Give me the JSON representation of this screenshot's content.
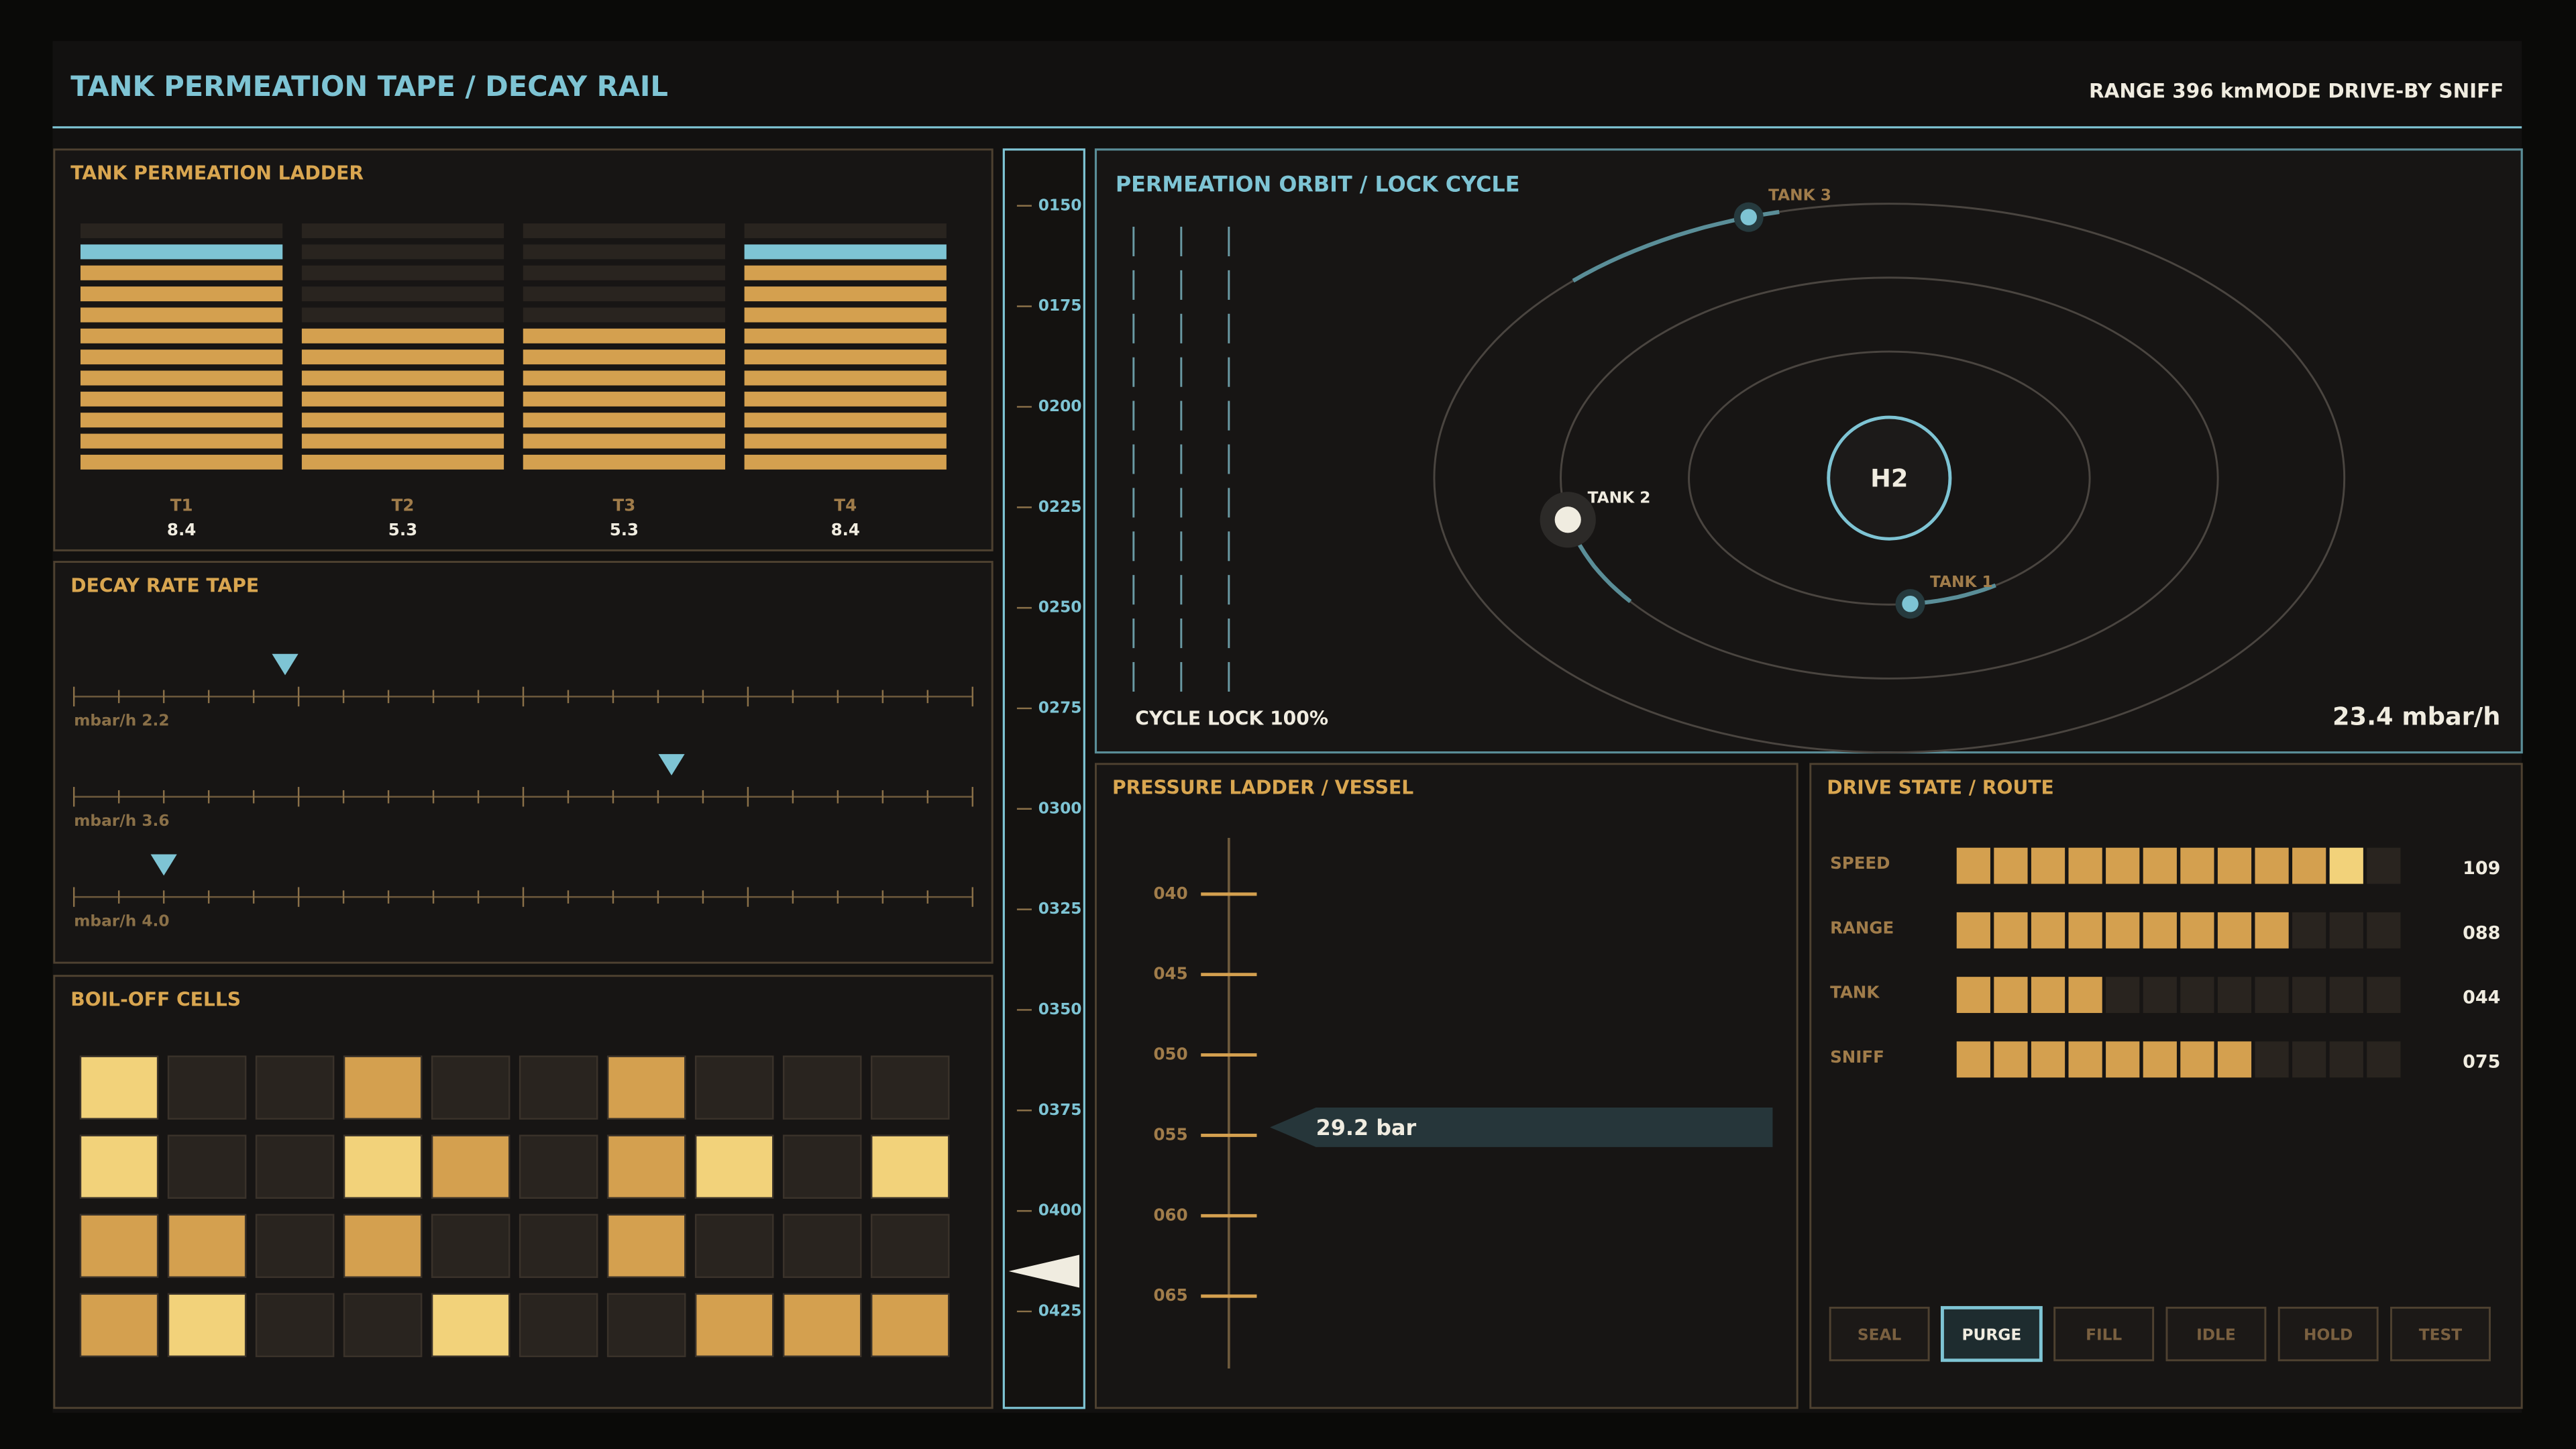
{
  "header": {
    "title": "TANK PERMEATION TAPE / DECAY RAIL",
    "status": [
      "RANGE 396 km",
      "MODE DRIVE-BY SNIFF"
    ]
  },
  "ladder": {
    "title": "TANK PERMEATION LADDER",
    "segments": 12,
    "ylim": [
      0,
      9.2
    ],
    "warn": 8,
    "tanks": [
      {
        "name": "T1",
        "value": 8.4
      },
      {
        "name": "T2",
        "value": 5.3
      },
      {
        "name": "T3",
        "value": 5.3
      },
      {
        "name": "T4",
        "value": 8.4
      }
    ]
  },
  "decay": {
    "title": "DECAY RATE TAPE",
    "xlim": [
      0,
      100
    ],
    "xticks": [
      0,
      5,
      10,
      15,
      20,
      25,
      30,
      35,
      40,
      45,
      50,
      55,
      60,
      65,
      70,
      75,
      80,
      85,
      90,
      95,
      100
    ],
    "tapes": [
      {
        "label": "mbar/h 2.2",
        "marker": 23.5
      },
      {
        "label": "mbar/h 3.6",
        "marker": 66.5
      },
      {
        "label": "mbar/h 4.0",
        "marker": 10
      }
    ]
  },
  "boiloff": {
    "title": "BOIL-OFF CELLS",
    "palette": [
      "#29241f",
      "#d4a04f",
      "#f2d27a"
    ],
    "cells": [
      [
        2,
        0,
        0,
        1,
        0,
        0,
        1,
        0,
        0,
        0
      ],
      [
        2,
        0,
        0,
        2,
        1,
        0,
        1,
        2,
        0,
        2
      ],
      [
        1,
        1,
        0,
        1,
        0,
        0,
        1,
        0,
        0,
        0
      ],
      [
        1,
        2,
        0,
        0,
        2,
        0,
        0,
        1,
        1,
        1
      ]
    ]
  },
  "rail": {
    "ylim": [
      136,
      449
    ],
    "pointer": 415,
    "yticks": [
      {
        "value": 150,
        "label": "0150"
      },
      {
        "value": 175,
        "label": "0175"
      },
      {
        "value": 200,
        "label": "0200"
      },
      {
        "value": 225,
        "label": "0225"
      },
      {
        "value": 250,
        "label": "0250"
      },
      {
        "value": 275,
        "label": "0275"
      },
      {
        "value": 300,
        "label": "0300"
      },
      {
        "value": 325,
        "label": "0325"
      },
      {
        "value": 350,
        "label": "0350"
      },
      {
        "value": 375,
        "label": "0375"
      },
      {
        "value": 400,
        "label": "0400"
      },
      {
        "value": 425,
        "label": "0425"
      }
    ]
  },
  "orbit": {
    "title": "PERMEATION ORBIT / LOCK CYCLE",
    "center": "H2",
    "lock": "CYCLE LOCK 100%",
    "rate": "23.4 mbar/h",
    "focus": 1,
    "tanks": [
      {
        "name": "TANK 1",
        "phase_deg": 84
      },
      {
        "name": "TANK 2",
        "phase_deg": 168
      },
      {
        "name": "TANK 3",
        "phase_deg": 252
      }
    ]
  },
  "pressure": {
    "title": "PRESSURE LADDER / VESSEL",
    "ylim": [
      36.5,
      69.5
    ],
    "marker": 54.5,
    "readout": "29.2 bar",
    "yticks": [
      {
        "value": 40,
        "label": "040"
      },
      {
        "value": 45,
        "label": "045"
      },
      {
        "value": 50,
        "label": "050"
      },
      {
        "value": 55,
        "label": "055"
      },
      {
        "value": 60,
        "label": "060"
      },
      {
        "value": 65,
        "label": "065"
      }
    ]
  },
  "drive": {
    "title": "DRIVE STATE / ROUTE",
    "xlim": [
      0,
      120
    ],
    "segments": 12,
    "warn": 100,
    "rows": [
      {
        "name": "SPEED",
        "value": 109,
        "value_label": "109"
      },
      {
        "name": "RANGE",
        "value": 88,
        "value_label": "088"
      },
      {
        "name": "TANK",
        "value": 44,
        "value_label": "044"
      },
      {
        "name": "SNIFF",
        "value": 75,
        "value_label": "075"
      }
    ],
    "buttons": [
      "SEAL",
      "PURGE",
      "FILL",
      "IDLE",
      "HOLD",
      "TEST"
    ],
    "active": 1
  }
}
